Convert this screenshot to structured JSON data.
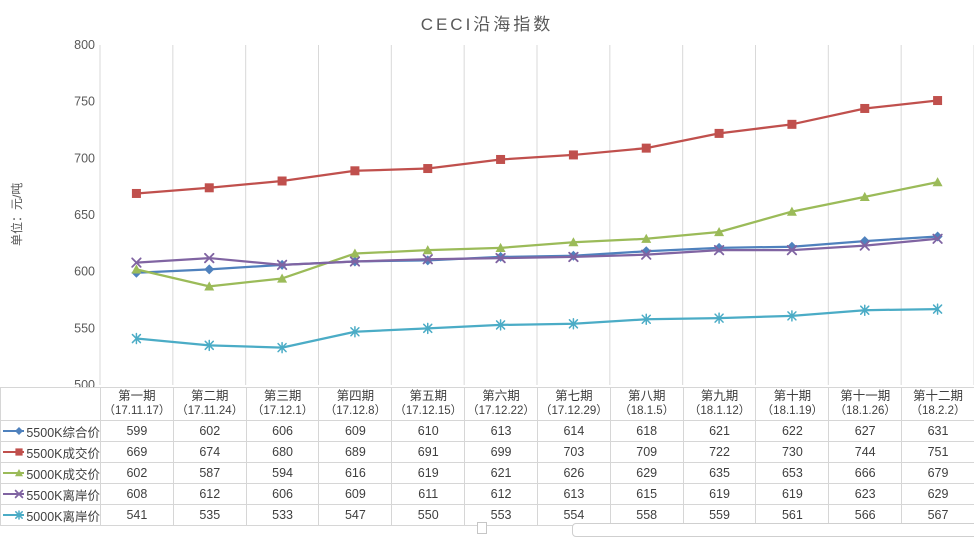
{
  "title": "CECI沿海指数",
  "chart_data": {
    "type": "line",
    "title": "CECI沿海指数",
    "ylabel": "单位：元/吨",
    "xlabel": "",
    "ylim": [
      500,
      800
    ],
    "y_ticks": [
      500,
      550,
      600,
      650,
      700,
      750,
      800
    ],
    "grid": "vertical-only",
    "legend_position": "table-left-column",
    "categories": [
      "第一期",
      "第二期",
      "第三期",
      "第四期",
      "第五期",
      "第六期",
      "第七期",
      "第八期",
      "第九期",
      "第十期",
      "第十一期",
      "第十二期"
    ],
    "category_dates": [
      "（17.11.17）",
      "（17.11.24）",
      "（17.12.1）",
      "（17.12.8）",
      "（17.12.15）",
      "（17.12.22）",
      "（17.12.29）",
      "（18.1.5）",
      "（18.1.12）",
      "（18.1.19）",
      "（18.1.26）",
      "（18.2.2）"
    ],
    "series": [
      {
        "name": "5500K综合价",
        "color": "#4F81BD",
        "marker": "diamond",
        "values": [
          599,
          602,
          606,
          609,
          610,
          613,
          614,
          618,
          621,
          622,
          627,
          631
        ]
      },
      {
        "name": "5500K成交价",
        "color": "#C0504D",
        "marker": "square",
        "values": [
          669,
          674,
          680,
          689,
          691,
          699,
          703,
          709,
          722,
          730,
          744,
          751
        ]
      },
      {
        "name": "5000K成交价",
        "color": "#9BBB59",
        "marker": "triangle",
        "values": [
          602,
          587,
          594,
          616,
          619,
          621,
          626,
          629,
          635,
          653,
          666,
          679
        ]
      },
      {
        "name": "5500K离岸价",
        "color": "#8064A2",
        "marker": "x",
        "values": [
          608,
          612,
          606,
          609,
          611,
          612,
          613,
          615,
          619,
          619,
          623,
          629
        ]
      },
      {
        "name": "5000K离岸价",
        "color": "#4BACC6",
        "marker": "asterisk",
        "values": [
          541,
          535,
          533,
          547,
          550,
          553,
          554,
          558,
          559,
          561,
          566,
          567
        ]
      }
    ]
  },
  "colors": {
    "gridline": "#d9d9d9",
    "table_border": "#d6d6d6",
    "axis_text": "#595959",
    "table_text": "#3f3f3f"
  }
}
